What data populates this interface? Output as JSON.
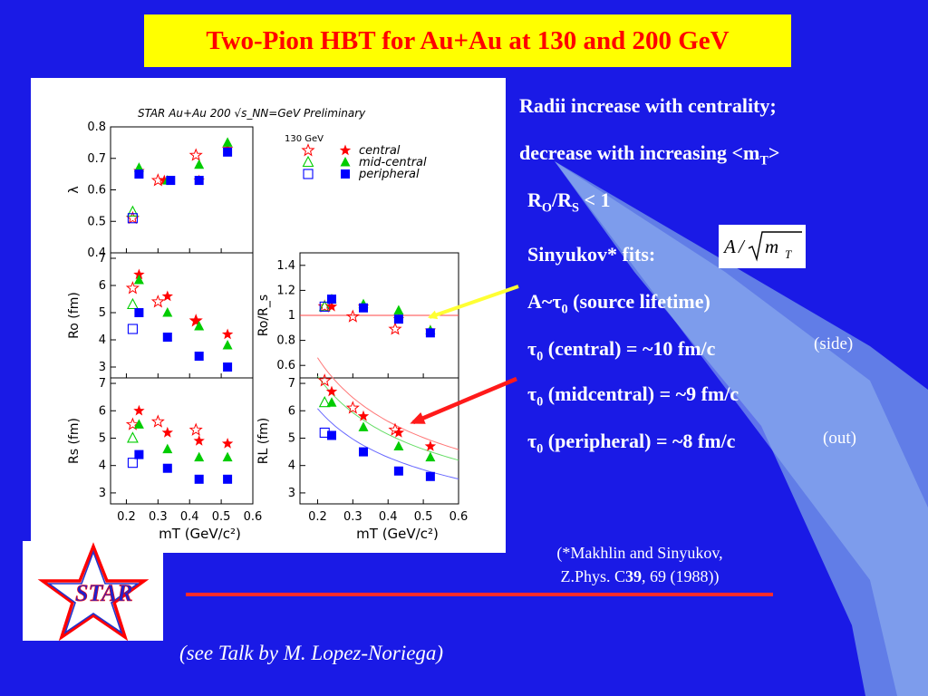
{
  "title": "Two-Pion HBT for Au+Au at 130 and 200 GeV",
  "bullets": {
    "line1": "Radii increase with centrality;",
    "line2_pre": "decrease with increasing <m",
    "line2_sub": "T",
    "line2_post": ">",
    "ratio_pre": "R",
    "ratio_sub1": "O",
    "ratio_mid": "/R",
    "ratio_sub2": "S",
    "ratio_post": " < 1",
    "sinyukov": "Sinyukov* fits:",
    "a_tau_pre": "A~τ",
    "a_tau_sub": "0",
    "a_tau_post": " (source lifetime)",
    "tau_central_pre": "τ",
    "tau_central_sub": "0",
    "tau_central_post": " (central) = ~10 fm/c",
    "tau_mid_pre": "τ",
    "tau_mid_sub": "0",
    "tau_mid_post": " (midcentral) = ~9 fm/c",
    "tau_per_pre": "τ",
    "tau_per_sub": "0",
    "tau_per_post": " (peripheral) = ~8 fm/c",
    "side_note": "(side)",
    "out_note": "(out)"
  },
  "formula": {
    "a": "A",
    "slash": "/",
    "m": "m",
    "sub": "T"
  },
  "reference": {
    "line1": "(*Makhlin and Sinyukov,",
    "line2_pre": "Z.Phys. C",
    "line2_bold": "39",
    "line2_post": ", 69 (1988))"
  },
  "talk": "(see Talk by M. Lopez-Noriega)",
  "logo_text": "STAR",
  "colors": {
    "background": "#1a1ae6",
    "title_bg": "#ffff00",
    "title_fg": "#ff0000",
    "central": "#ff0000",
    "midcentral": "#00cc00",
    "peripheral": "#0000ff",
    "arrow_yellow": "#ffff33",
    "arrow_red": "#ff1a1a"
  },
  "chart_data": [
    {
      "type": "scatter",
      "panel": "lambda",
      "header": "STAR Au+Au 200 √s_NN=GeV  Preliminary",
      "ylabel": "λ",
      "xlim": [
        0.15,
        0.6
      ],
      "ylim": [
        0.4,
        0.8
      ],
      "yticks": [
        "0.4",
        "0.5",
        "0.6",
        "0.7",
        "0.8"
      ],
      "legend": {
        "energy": "130 GeV",
        "central": "central",
        "midcentral": "mid-central",
        "peripheral": "peripheral"
      },
      "series": [
        {
          "name": "central",
          "energy": "130",
          "marker": "open-star",
          "x": [
            0.22,
            0.3,
            0.42
          ],
          "y": [
            0.51,
            0.63,
            0.71
          ]
        },
        {
          "name": "mid-central",
          "energy": "130",
          "marker": "open-triangle",
          "x": [
            0.22
          ],
          "y": [
            0.53
          ]
        },
        {
          "name": "peripheral",
          "energy": "130",
          "marker": "open-square",
          "x": [
            0.22
          ],
          "y": [
            0.51
          ]
        },
        {
          "name": "central",
          "energy": "200",
          "marker": "filled-star",
          "x": [
            0.24,
            0.32,
            0.43,
            0.52
          ],
          "y": [
            0.66,
            0.63,
            0.63,
            0.73
          ]
        },
        {
          "name": "mid-central",
          "energy": "200",
          "marker": "filled-triangle",
          "x": [
            0.24,
            0.33,
            0.43,
            0.52
          ],
          "y": [
            0.67,
            0.63,
            0.68,
            0.75
          ]
        },
        {
          "name": "peripheral",
          "energy": "200",
          "marker": "filled-square",
          "x": [
            0.24,
            0.34,
            0.43,
            0.52
          ],
          "y": [
            0.65,
            0.63,
            0.63,
            0.72
          ]
        }
      ]
    },
    {
      "type": "scatter",
      "panel": "Ro",
      "ylabel": "R_o (fm)",
      "xlim": [
        0.15,
        0.6
      ],
      "ylim": [
        2.6,
        7.2
      ],
      "yticks": [
        "3",
        "4",
        "5",
        "6",
        "7"
      ],
      "series": [
        {
          "name": "central",
          "energy": "130",
          "marker": "open-star",
          "x": [
            0.22,
            0.3,
            0.42
          ],
          "y": [
            5.9,
            5.4,
            4.7
          ]
        },
        {
          "name": "mid-central",
          "energy": "130",
          "marker": "open-triangle",
          "x": [
            0.22
          ],
          "y": [
            5.3
          ]
        },
        {
          "name": "peripheral",
          "energy": "130",
          "marker": "open-square",
          "x": [
            0.22
          ],
          "y": [
            4.4
          ]
        },
        {
          "name": "central",
          "energy": "200",
          "marker": "filled-star",
          "x": [
            0.24,
            0.33,
            0.42,
            0.52
          ],
          "y": [
            6.4,
            5.6,
            4.7,
            4.2
          ]
        },
        {
          "name": "mid-central",
          "energy": "200",
          "marker": "filled-triangle",
          "x": [
            0.24,
            0.33,
            0.43,
            0.52
          ],
          "y": [
            6.2,
            5.0,
            4.5,
            3.8
          ]
        },
        {
          "name": "peripheral",
          "energy": "200",
          "marker": "filled-square",
          "x": [
            0.24,
            0.33,
            0.43,
            0.52
          ],
          "y": [
            5.0,
            4.1,
            3.4,
            3.0
          ]
        }
      ]
    },
    {
      "type": "scatter",
      "panel": "Rs",
      "ylabel": "R_s (fm)",
      "xlabel": "m_T (GeV/c²)",
      "xlim": [
        0.15,
        0.6
      ],
      "ylim": [
        2.6,
        7.2
      ],
      "xticks": [
        "0.2",
        "0.3",
        "0.4",
        "0.5",
        "0.6"
      ],
      "yticks": [
        "3",
        "4",
        "5",
        "6",
        "7"
      ],
      "series": [
        {
          "name": "central",
          "energy": "130",
          "marker": "open-star",
          "x": [
            0.22,
            0.3,
            0.42
          ],
          "y": [
            5.5,
            5.6,
            5.3
          ]
        },
        {
          "name": "mid-central",
          "energy": "130",
          "marker": "open-triangle",
          "x": [
            0.22
          ],
          "y": [
            5.0
          ]
        },
        {
          "name": "peripheral",
          "energy": "130",
          "marker": "open-square",
          "x": [
            0.22
          ],
          "y": [
            4.1
          ]
        },
        {
          "name": "central",
          "energy": "200",
          "marker": "filled-star",
          "x": [
            0.24,
            0.33,
            0.43,
            0.52
          ],
          "y": [
            6.0,
            5.2,
            4.9,
            4.8
          ]
        },
        {
          "name": "mid-central",
          "energy": "200",
          "marker": "filled-triangle",
          "x": [
            0.24,
            0.33,
            0.43,
            0.52
          ],
          "y": [
            5.5,
            4.6,
            4.3,
            4.3
          ]
        },
        {
          "name": "peripheral",
          "energy": "200",
          "marker": "filled-square",
          "x": [
            0.24,
            0.33,
            0.43,
            0.52
          ],
          "y": [
            4.4,
            3.9,
            3.5,
            3.5
          ]
        }
      ]
    },
    {
      "type": "scatter",
      "panel": "Ro/Rs",
      "ylabel": "R_o/R_s",
      "xlim": [
        0.15,
        0.6
      ],
      "ylim": [
        0.5,
        1.5
      ],
      "yticks": [
        "0.6",
        "0.8",
        "1",
        "1.2",
        "1.4"
      ],
      "reference_line": 1,
      "series": [
        {
          "name": "central",
          "energy": "130",
          "marker": "open-star",
          "x": [
            0.22,
            0.3,
            0.42
          ],
          "y": [
            1.07,
            0.99,
            0.89
          ]
        },
        {
          "name": "mid-central",
          "energy": "130",
          "marker": "open-triangle",
          "x": [
            0.22
          ],
          "y": [
            1.07
          ]
        },
        {
          "name": "peripheral",
          "energy": "130",
          "marker": "open-square",
          "x": [
            0.22
          ],
          "y": [
            1.07
          ]
        },
        {
          "name": "central",
          "energy": "200",
          "marker": "filled-star",
          "x": [
            0.24,
            0.33,
            0.43,
            0.52
          ],
          "y": [
            1.07,
            1.07,
            0.97,
            0.88
          ]
        },
        {
          "name": "mid-central",
          "energy": "200",
          "marker": "filled-triangle",
          "x": [
            0.24,
            0.33,
            0.43,
            0.52
          ],
          "y": [
            1.13,
            1.09,
            1.04,
            0.88
          ]
        },
        {
          "name": "peripheral",
          "energy": "200",
          "marker": "filled-square",
          "x": [
            0.24,
            0.33,
            0.43,
            0.52
          ],
          "y": [
            1.13,
            1.06,
            0.97,
            0.86
          ]
        }
      ]
    },
    {
      "type": "scatter",
      "panel": "RL",
      "ylabel": "R_L (fm)",
      "xlabel": "m_T (GeV/c²)",
      "xlim": [
        0.15,
        0.6
      ],
      "ylim": [
        2.6,
        7.2
      ],
      "xticks": [
        "0.2",
        "0.3",
        "0.4",
        "0.5",
        "0.6"
      ],
      "yticks": [
        "3",
        "4",
        "5",
        "6",
        "7"
      ],
      "fits": [
        {
          "name": "central",
          "A": 3.55
        },
        {
          "name": "mid-central",
          "A": 3.25
        },
        {
          "name": "peripheral",
          "A": 2.72
        }
      ],
      "series": [
        {
          "name": "central",
          "energy": "130",
          "marker": "open-star",
          "x": [
            0.22,
            0.3,
            0.42
          ],
          "y": [
            7.1,
            6.1,
            5.3
          ]
        },
        {
          "name": "mid-central",
          "energy": "130",
          "marker": "open-triangle",
          "x": [
            0.22
          ],
          "y": [
            6.3
          ]
        },
        {
          "name": "peripheral",
          "energy": "130",
          "marker": "open-square",
          "x": [
            0.22
          ],
          "y": [
            5.2
          ]
        },
        {
          "name": "central",
          "energy": "200",
          "marker": "filled-star",
          "x": [
            0.24,
            0.33,
            0.43,
            0.52
          ],
          "y": [
            6.7,
            5.8,
            5.2,
            4.7
          ]
        },
        {
          "name": "mid-central",
          "energy": "200",
          "marker": "filled-triangle",
          "x": [
            0.24,
            0.33,
            0.43,
            0.52
          ],
          "y": [
            6.3,
            5.4,
            4.7,
            4.3
          ]
        },
        {
          "name": "peripheral",
          "energy": "200",
          "marker": "filled-square",
          "x": [
            0.24,
            0.33,
            0.43,
            0.52
          ],
          "y": [
            5.1,
            4.5,
            3.8,
            3.6
          ]
        }
      ]
    }
  ]
}
